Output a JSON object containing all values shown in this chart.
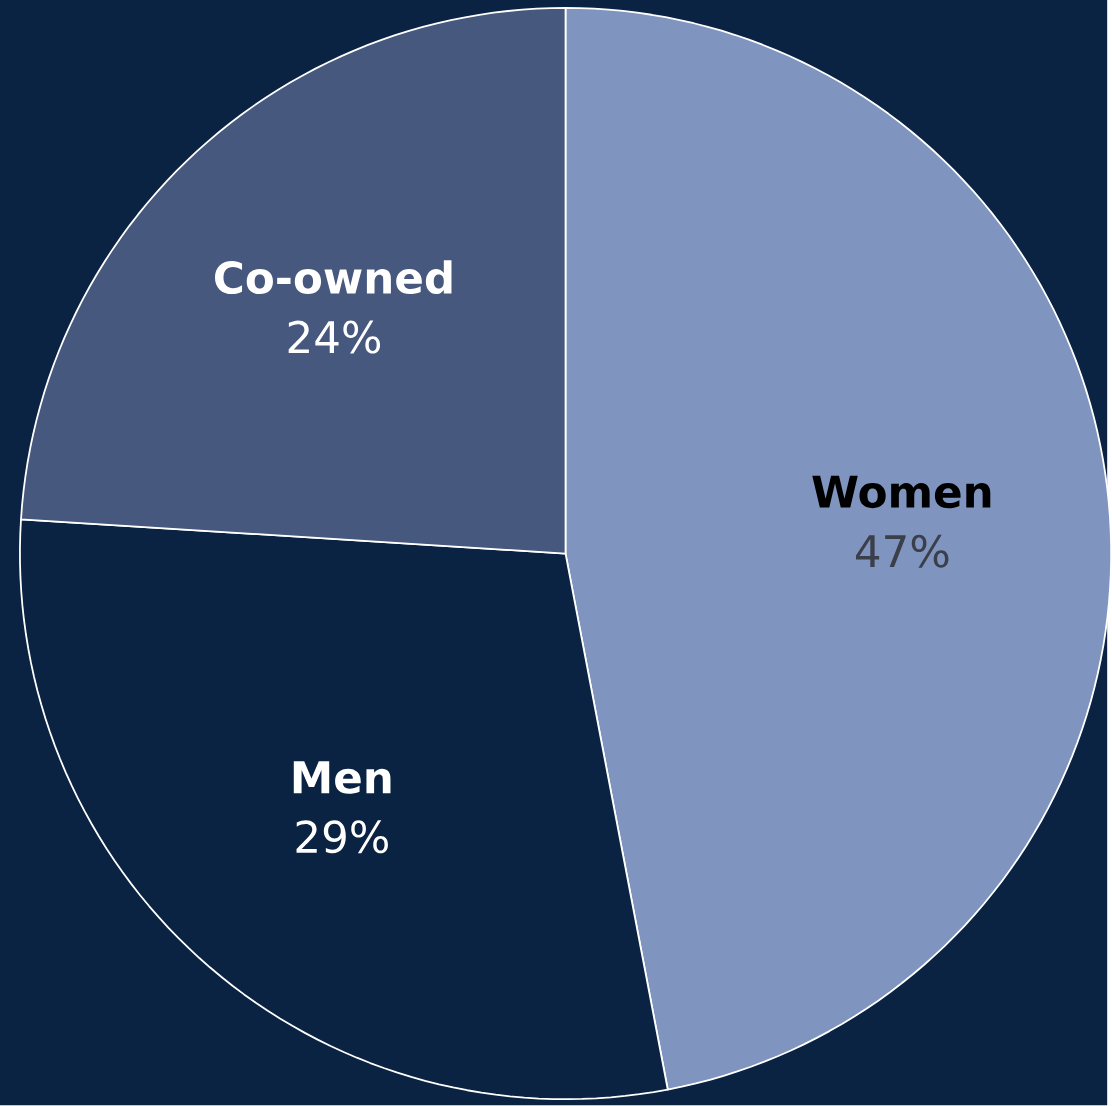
{
  "chart_data": {
    "type": "pie",
    "categories": [
      "Women",
      "Men",
      "Co-owned"
    ],
    "values": [
      47,
      29,
      24
    ],
    "colors": [
      "#7f95bf",
      "#0b2342",
      "#46587e"
    ],
    "value_labels": [
      "47%",
      "29%",
      "24%"
    ]
  }
}
